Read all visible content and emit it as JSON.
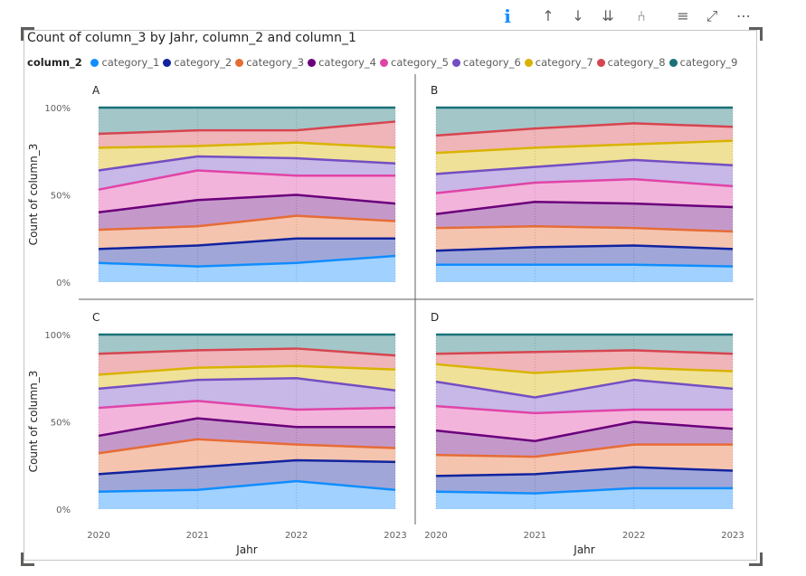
{
  "toolbar": {
    "icons": [
      {
        "name": "info-icon",
        "glyph": "i"
      },
      {
        "name": "drill-up-icon",
        "glyph": "↑"
      },
      {
        "name": "drill-down-icon",
        "glyph": "↓"
      },
      {
        "name": "expand-all-down-icon",
        "glyph": "⇊"
      },
      {
        "name": "expand-hierarchy-icon",
        "glyph": "⑃"
      },
      {
        "name": "filter-icon",
        "glyph": "≡"
      },
      {
        "name": "focus-mode-icon",
        "glyph": "⤢"
      },
      {
        "name": "more-options-icon",
        "glyph": "⋯"
      }
    ]
  },
  "chart_data": {
    "type": "area",
    "stacked": "100%",
    "title": "Count of column_3 by Jahr, column_2 and column_1",
    "legend_title": "column_2",
    "legend_position": "top-left",
    "xlabel": "Jahr",
    "ylabel": "Count of column_3",
    "x": [
      "2020",
      "2021",
      "2022",
      "2023"
    ],
    "y_ticks": [
      "0%",
      "50%",
      "100%"
    ],
    "ylim": [
      0,
      100
    ],
    "grid": false,
    "series": [
      {
        "name": "category_1",
        "color": "#118dff"
      },
      {
        "name": "category_2",
        "color": "#12239e"
      },
      {
        "name": "category_3",
        "color": "#e66c37"
      },
      {
        "name": "category_4",
        "color": "#6b007b"
      },
      {
        "name": "category_5",
        "color": "#e044a7"
      },
      {
        "name": "category_6",
        "color": "#744ec2"
      },
      {
        "name": "category_7",
        "color": "#d9b300"
      },
      {
        "name": "category_8",
        "color": "#d64550"
      },
      {
        "name": "category_9",
        "color": "#197278"
      }
    ],
    "facets": [
      {
        "label": "A",
        "cumulative": [
          [
            11,
            9,
            11,
            15
          ],
          [
            19,
            21,
            25,
            25
          ],
          [
            30,
            32,
            38,
            35
          ],
          [
            40,
            47,
            50,
            45
          ],
          [
            53,
            64,
            61,
            61
          ],
          [
            64,
            72,
            71,
            68
          ],
          [
            77,
            78,
            80,
            77
          ],
          [
            85,
            87,
            87,
            92
          ],
          [
            100,
            100,
            100,
            100
          ]
        ]
      },
      {
        "label": "B",
        "cumulative": [
          [
            10,
            10,
            10,
            9
          ],
          [
            18,
            20,
            21,
            19
          ],
          [
            31,
            32,
            31,
            29
          ],
          [
            39,
            46,
            45,
            43
          ],
          [
            51,
            57,
            59,
            55
          ],
          [
            62,
            66,
            70,
            67
          ],
          [
            74,
            77,
            79,
            81
          ],
          [
            84,
            88,
            91,
            89
          ],
          [
            100,
            100,
            100,
            100
          ]
        ]
      },
      {
        "label": "C",
        "cumulative": [
          [
            10,
            11,
            16,
            11
          ],
          [
            20,
            24,
            28,
            27
          ],
          [
            32,
            40,
            37,
            35
          ],
          [
            42,
            52,
            47,
            47
          ],
          [
            58,
            62,
            57,
            58
          ],
          [
            69,
            74,
            75,
            68
          ],
          [
            77,
            81,
            82,
            80
          ],
          [
            89,
            91,
            92,
            88
          ],
          [
            100,
            100,
            100,
            100
          ]
        ]
      },
      {
        "label": "D",
        "cumulative": [
          [
            10,
            9,
            12,
            12
          ],
          [
            19,
            20,
            24,
            22
          ],
          [
            31,
            30,
            37,
            37
          ],
          [
            45,
            39,
            50,
            46
          ],
          [
            59,
            55,
            57,
            57
          ],
          [
            73,
            64,
            74,
            69
          ],
          [
            83,
            78,
            81,
            79
          ],
          [
            89,
            90,
            91,
            89
          ],
          [
            100,
            100,
            100,
            100
          ]
        ]
      }
    ]
  }
}
